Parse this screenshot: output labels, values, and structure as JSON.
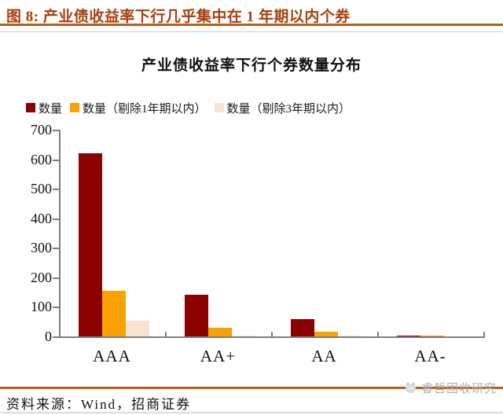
{
  "header": {
    "title": "图 8: 产业债收益率下行几乎集中在 1 年期以内个券"
  },
  "chart_data": {
    "type": "bar",
    "title": "产业债收益率下行个券数量分布",
    "categories": [
      "AAA",
      "AA+",
      "AA",
      "AA-"
    ],
    "series": [
      {
        "name": "数量",
        "color": "#8B0101",
        "values": [
          620,
          140,
          58,
          2
        ]
      },
      {
        "name": "数量（剔除1年期以内）",
        "color": "#F9A201",
        "values": [
          154,
          28,
          15,
          1
        ]
      },
      {
        "name": "数量（剔除3年期以内）",
        "color": "#F8E3D3",
        "values": [
          52,
          3,
          2,
          0
        ]
      }
    ],
    "xlabel": "",
    "ylabel": "",
    "ylim": [
      0,
      700
    ],
    "y_ticks": [
      0,
      100,
      200,
      300,
      400,
      500,
      600,
      700
    ],
    "legend_position": "top-left",
    "grid": false
  },
  "footer": {
    "source": "资料来源：Wind，招商证券",
    "watermark": "睿哲固收研究"
  },
  "accent": {
    "title_color": "#A6400F",
    "rule_color": "#B2601F",
    "watermark_color": "#ABACAE"
  }
}
